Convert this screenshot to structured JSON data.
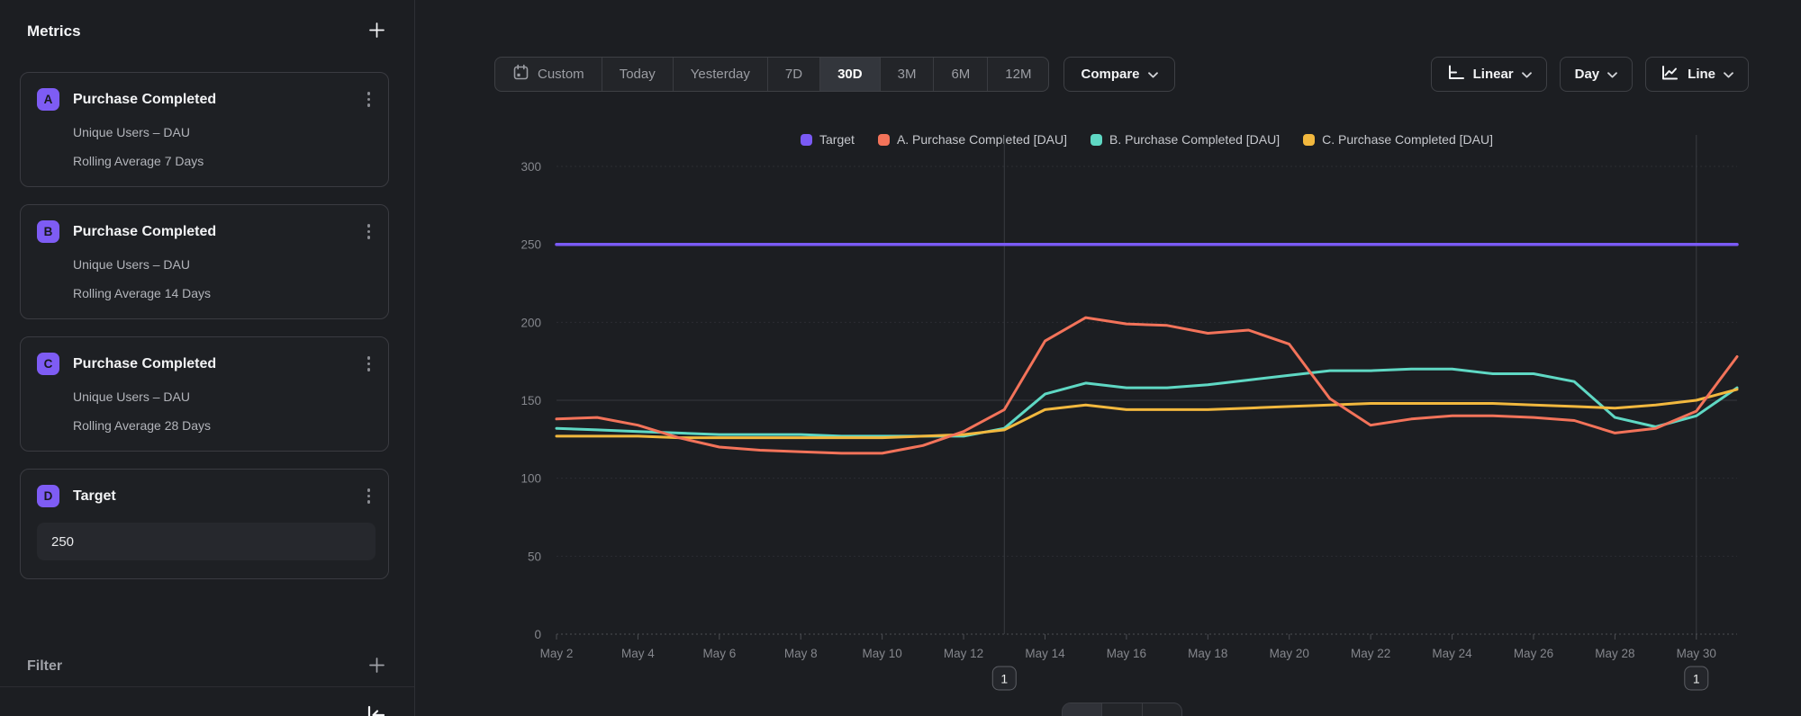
{
  "sidebar": {
    "title": "Metrics",
    "metrics": [
      {
        "badge": "A",
        "title": "Purchase Completed",
        "line1": "Unique Users – DAU",
        "line2": "Rolling Average 7 Days"
      },
      {
        "badge": "B",
        "title": "Purchase Completed",
        "line1": "Unique Users – DAU",
        "line2": "Rolling Average 14 Days"
      },
      {
        "badge": "C",
        "title": "Purchase Completed",
        "line1": "Unique Users – DAU",
        "line2": "Rolling Average 28 Days"
      }
    ],
    "target": {
      "badge": "D",
      "title": "Target",
      "value": "250"
    },
    "filter_label": "Filter"
  },
  "toolbar": {
    "ranges": [
      "Custom",
      "Today",
      "Yesterday",
      "7D",
      "30D",
      "3M",
      "6M",
      "12M"
    ],
    "selected_range": "30D",
    "compare_label": "Compare",
    "scale_label": "Linear",
    "interval_label": "Day",
    "chart_type_label": "Line"
  },
  "chart_data": {
    "type": "line",
    "title": "",
    "xlabel": "",
    "ylabel": "",
    "ylim": [
      0,
      300
    ],
    "yticks": [
      0,
      50,
      100,
      150,
      200,
      250,
      300
    ],
    "grid": true,
    "legend_position": "top-center",
    "x": [
      "May 2",
      "May 3",
      "May 4",
      "May 5",
      "May 6",
      "May 7",
      "May 8",
      "May 9",
      "May 10",
      "May 11",
      "May 12",
      "May 13",
      "May 14",
      "May 15",
      "May 16",
      "May 17",
      "May 18",
      "May 19",
      "May 20",
      "May 21",
      "May 22",
      "May 23",
      "May 24",
      "May 25",
      "May 26",
      "May 27",
      "May 28",
      "May 29",
      "May 30",
      "May 31"
    ],
    "x_tick_labels": [
      "May 2",
      "May 4",
      "May 6",
      "May 8",
      "May 10",
      "May 12",
      "May 14",
      "May 16",
      "May 18",
      "May 20",
      "May 22",
      "May 24",
      "May 26",
      "May 28",
      "May 30"
    ],
    "series": [
      {
        "name": "Target",
        "color": "#7a5af5",
        "values": [
          250,
          250,
          250,
          250,
          250,
          250,
          250,
          250,
          250,
          250,
          250,
          250,
          250,
          250,
          250,
          250,
          250,
          250,
          250,
          250,
          250,
          250,
          250,
          250,
          250,
          250,
          250,
          250,
          250,
          250
        ]
      },
      {
        "name": "A. Purchase Completed [DAU]",
        "color": "#f3735a",
        "values": [
          138,
          139,
          134,
          126,
          120,
          118,
          117,
          116,
          116,
          121,
          130,
          144,
          188,
          203,
          199,
          198,
          193,
          195,
          186,
          151,
          134,
          138,
          140,
          140,
          139,
          137,
          129,
          132,
          143,
          178
        ]
      },
      {
        "name": "B. Purchase Completed [DAU]",
        "color": "#5fd8c4",
        "values": [
          132,
          131,
          130,
          129,
          128,
          128,
          128,
          127,
          127,
          127,
          127,
          132,
          154,
          161,
          158,
          158,
          160,
          163,
          166,
          169,
          169,
          170,
          170,
          167,
          167,
          162,
          139,
          133,
          140,
          158
        ]
      },
      {
        "name": "C. Purchase Completed [DAU]",
        "color": "#f2b83e",
        "values": [
          127,
          127,
          127,
          126,
          126,
          126,
          126,
          126,
          126,
          127,
          128,
          131,
          144,
          147,
          144,
          144,
          144,
          145,
          146,
          147,
          148,
          148,
          148,
          148,
          147,
          146,
          145,
          147,
          150,
          157
        ]
      }
    ],
    "markers": [
      {
        "label": "1",
        "date": "May 13"
      },
      {
        "label": "1",
        "date": "May 30"
      }
    ]
  }
}
